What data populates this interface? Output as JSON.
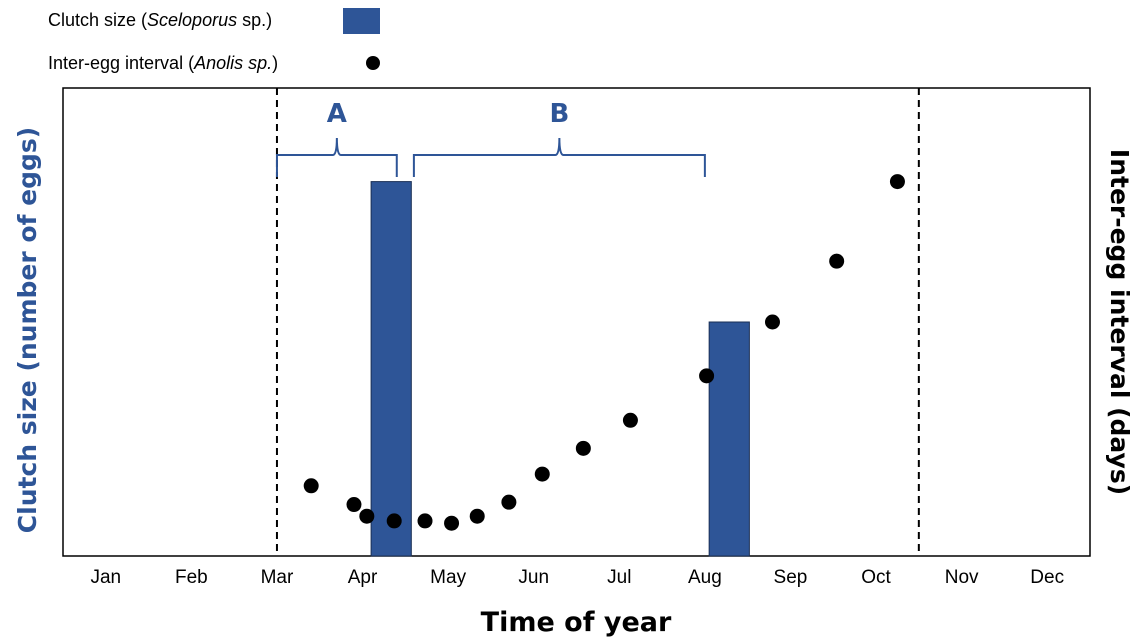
{
  "chart_data": {
    "type": "bar+scatter",
    "xlabel": "Time of year",
    "ylabel_left": "Clutch size (number of eggs)",
    "ylabel_right": "Inter-egg interval (days)",
    "categories": [
      "Jan",
      "Feb",
      "Mar",
      "Apr",
      "May",
      "Jun",
      "Jul",
      "Aug",
      "Sep",
      "Oct",
      "Nov",
      "Dec"
    ],
    "xlim": [
      0.5,
      12.5
    ],
    "ylim": [
      0,
      100
    ],
    "legend": {
      "placement": "top-left",
      "bar_prefix": "Clutch size (",
      "bar_italic": "Sceloporus",
      "bar_suffix": " sp.)",
      "point_prefix": "Inter-egg interval (",
      "point_italic": "Anolis sp.",
      "point_suffix": ")"
    },
    "bars": {
      "name": "Clutch size (Sceloporus sp.)",
      "color": "#2E5597",
      "x_start": [
        4.1,
        8.05
      ],
      "x_end": [
        4.57,
        8.52
      ],
      "values": [
        80,
        50
      ]
    },
    "points": {
      "name": "Inter-egg interval (Anolis sp.)",
      "color": "#000000",
      "x": [
        3.4,
        3.9,
        4.05,
        4.37,
        4.73,
        5.04,
        5.34,
        5.71,
        6.1,
        6.58,
        7.13,
        8.02,
        8.79,
        9.54,
        10.25
      ],
      "y": [
        15,
        11,
        8.5,
        7.5,
        7.5,
        7,
        8.5,
        11.5,
        17.5,
        23,
        29,
        38.5,
        50,
        63,
        80
      ]
    },
    "vlines": [
      {
        "x": 3.0,
        "style": "dashed"
      },
      {
        "x": 10.5,
        "style": "dashed"
      }
    ],
    "brackets": [
      {
        "label": "A",
        "x_start": 3.0,
        "x_end": 4.4,
        "color": "#2E5597"
      },
      {
        "label": "B",
        "x_start": 4.6,
        "x_end": 8.0,
        "color": "#2E5597"
      }
    ],
    "grid": false
  }
}
